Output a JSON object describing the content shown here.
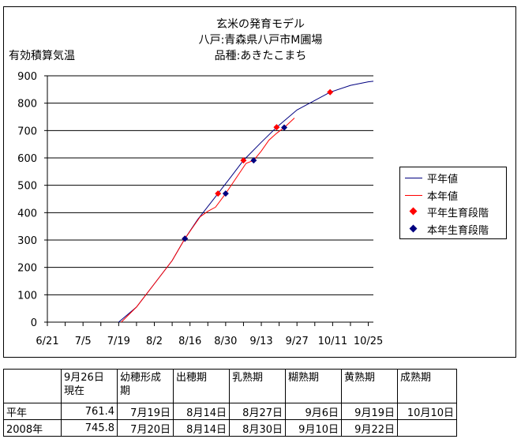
{
  "chart_data": {
    "type": "line",
    "title_lines": [
      "玄米の発育モデル",
      "八戸:青森県八戸市M圃場",
      "品種:あきたこまち"
    ],
    "ylabel": "有効積算気温",
    "xlabel": "",
    "x_ticks": [
      "6/21",
      "7/5",
      "7/19",
      "8/2",
      "8/16",
      "8/30",
      "9/13",
      "9/27",
      "10/11",
      "10/25"
    ],
    "xlim": [
      "6/21",
      "10/27"
    ],
    "ylim": [
      0,
      900
    ],
    "y_ticks": [
      "0",
      "100",
      "200",
      "300",
      "400",
      "500",
      "600",
      "700",
      "800",
      "900"
    ],
    "grid": "horizontal",
    "legend_position": "right",
    "series": [
      {
        "name": "平年値",
        "kind": "line",
        "color": "#000080",
        "points": [
          [
            "7/19",
            0
          ],
          [
            "7/26",
            55
          ],
          [
            "8/2",
            140
          ],
          [
            "8/9",
            225
          ],
          [
            "8/14",
            305
          ],
          [
            "8/19",
            375
          ],
          [
            "8/27",
            470
          ],
          [
            "9/1",
            530
          ],
          [
            "9/6",
            591
          ],
          [
            "9/13",
            657
          ],
          [
            "9/19",
            712
          ],
          [
            "9/27",
            775
          ],
          [
            "10/4",
            810
          ],
          [
            "10/10",
            840
          ],
          [
            "10/18",
            865
          ],
          [
            "10/25",
            878
          ],
          [
            "10/27",
            880
          ]
        ]
      },
      {
        "name": "本年値",
        "kind": "line",
        "color": "#ff0000",
        "points": [
          [
            "7/20",
            0
          ],
          [
            "7/26",
            55
          ],
          [
            "8/2",
            140
          ],
          [
            "8/9",
            225
          ],
          [
            "8/14",
            305
          ],
          [
            "8/17",
            345
          ],
          [
            "8/20",
            385
          ],
          [
            "8/23",
            405
          ],
          [
            "8/26",
            420
          ],
          [
            "8/30",
            470
          ],
          [
            "9/3",
            525
          ],
          [
            "9/7",
            580
          ],
          [
            "9/10",
            591
          ],
          [
            "9/13",
            625
          ],
          [
            "9/16",
            665
          ],
          [
            "9/19",
            690
          ],
          [
            "9/22",
            711
          ],
          [
            "9/26",
            745.8
          ]
        ]
      },
      {
        "name": "平年生育段階",
        "kind": "marker",
        "color": "#ff0000",
        "points": [
          [
            "8/14",
            305
          ],
          [
            "8/27",
            470
          ],
          [
            "9/6",
            591
          ],
          [
            "9/19",
            712
          ],
          [
            "10/10",
            840
          ]
        ]
      },
      {
        "name": "本年生育段階",
        "kind": "marker",
        "color": "#000080",
        "points": [
          [
            "8/14",
            305
          ],
          [
            "8/30",
            470
          ],
          [
            "9/10",
            591
          ],
          [
            "9/22",
            711
          ]
        ]
      }
    ]
  },
  "table": {
    "headers": [
      "",
      "9月26日\n現在",
      "幼穂形成\n期",
      "出穂期",
      "乳熟期",
      "糊熟期",
      "黄熟期",
      "成熟期"
    ],
    "rows": [
      [
        "平年",
        "761.4",
        "7月19日",
        "8月14日",
        "8月27日",
        "9月6日",
        "9月19日",
        "10月10日"
      ],
      [
        "2008年",
        "745.8",
        "7月20日",
        "8月14日",
        "8月30日",
        "9月10日",
        "9月22日",
        ""
      ]
    ]
  }
}
